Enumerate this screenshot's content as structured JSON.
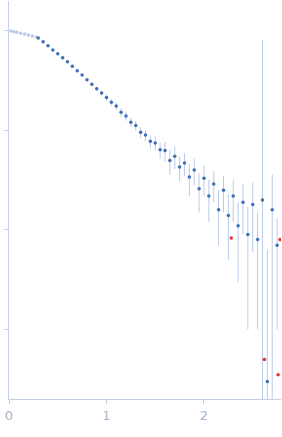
{
  "chart_data": {
    "type": "scatter",
    "log": "y",
    "grid": false,
    "tick_labels": "x",
    "xlim": [
      0,
      2.79
    ],
    "ylim": [
      0.0002,
      2
    ],
    "xticks": [
      0,
      1,
      2
    ],
    "yticks": [
      0.001,
      0.01,
      0.1,
      1
    ],
    "series": [
      {
        "color": "#b9cbe8",
        "marker": "circle",
        "x": [
          0.02,
          0.05,
          0.08,
          0.12,
          0.16,
          0.2,
          0.24,
          0.28
        ],
        "values": [
          1.0,
          0.98,
          0.97,
          0.95,
          0.93,
          0.91,
          0.89,
          0.87
        ]
      },
      {
        "color": "#3f6fb8",
        "marker": "circle",
        "x": [
          0.3,
          0.35,
          0.4,
          0.45,
          0.5,
          0.55,
          0.6,
          0.65,
          0.7,
          0.75,
          0.8,
          0.85,
          0.9,
          0.95,
          1.0,
          1.05,
          1.1,
          1.15,
          1.2,
          1.25,
          1.3,
          1.35,
          1.4,
          1.45,
          1.5,
          1.55,
          1.6,
          1.65,
          1.7,
          1.75,
          1.8,
          1.85,
          1.9,
          1.95,
          2.0,
          2.05,
          2.1,
          2.15,
          2.2,
          2.25,
          2.3,
          2.35,
          2.4,
          2.45,
          2.5,
          2.55,
          2.6,
          2.65,
          2.7,
          2.75
        ],
        "values": [
          0.851,
          0.78,
          0.708,
          0.645,
          0.589,
          0.538,
          0.49,
          0.442,
          0.398,
          0.36,
          0.324,
          0.292,
          0.263,
          0.238,
          0.214,
          0.192,
          0.176,
          0.152,
          0.14,
          0.121,
          0.112,
          0.096,
          0.09,
          0.078,
          0.075,
          0.064,
          0.063,
          0.05,
          0.055,
          0.043,
          0.047,
          0.034,
          0.04,
          0.026,
          0.033,
          0.022,
          0.029,
          0.016,
          0.025,
          0.014,
          0.022,
          0.011,
          0.019,
          0.009,
          0.018,
          0.008,
          0.02,
          0.0003,
          0.016,
          0.007
        ],
        "error": [
          0.02,
          0.02,
          0.02,
          0.02,
          0.02,
          0.02,
          0.015,
          0.015,
          0.015,
          0.012,
          0.012,
          0.012,
          0.012,
          0.012,
          0.015,
          0.015,
          0.015,
          0.015,
          0.015,
          0.013,
          0.013,
          0.012,
          0.012,
          0.012,
          0.012,
          0.012,
          0.014,
          0.014,
          0.014,
          0.012,
          0.012,
          0.012,
          0.012,
          0.011,
          0.011,
          0.01,
          0.01,
          0.009,
          0.01,
          0.009,
          0.01,
          0.008,
          0.01,
          0.008,
          0.012,
          0.007,
          0.8,
          0.006,
          0.02,
          0.006
        ]
      },
      {
        "color": "#e0303a",
        "marker": "circle",
        "x": [
          2.28,
          2.62,
          2.76,
          2.78
        ],
        "values": [
          0.0083,
          0.0005,
          0.00035,
          0.008
        ]
      }
    ]
  }
}
